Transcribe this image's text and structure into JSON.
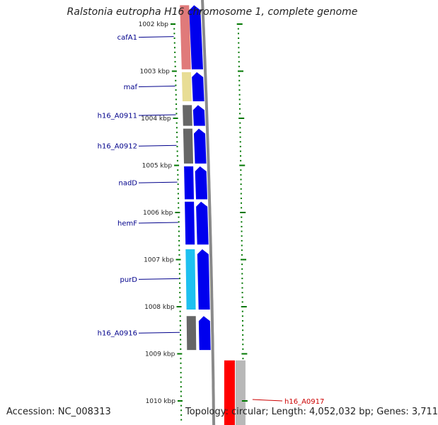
{
  "title": "Ralstonia eutropha H16 chromosome 1, complete genome",
  "accession": "Accession: NC_008313",
  "topology": "Topology: circular; Length: 4,052,032 bp; Genes: 3,711",
  "colors": {
    "label_blue": "#00008b",
    "label_red": "#cc0000",
    "tick_green": "#007700",
    "backbone": "#8a8a8a",
    "cds_blue": "#0000ee",
    "cafA1": "#e07a7a",
    "maf": "#e8dd95",
    "grey": "#666666",
    "purD": "#1ec0f0",
    "red": "#ff0000",
    "lightgrey": "#b8b8b8"
  },
  "axis": {
    "unit": "kbp",
    "ticks": [
      {
        "kbp": 1002,
        "label": "1002 kbp"
      },
      {
        "kbp": 1003,
        "label": "1003 kbp"
      },
      {
        "kbp": 1004,
        "label": "1004 kbp"
      },
      {
        "kbp": 1005,
        "label": "1005 kbp"
      },
      {
        "kbp": 1006,
        "label": "1006 kbp"
      },
      {
        "kbp": 1007,
        "label": "1007 kbp"
      },
      {
        "kbp": 1008,
        "label": "1008 kbp"
      },
      {
        "kbp": 1009,
        "label": "1009 kbp"
      },
      {
        "kbp": 1010,
        "label": "1010 kbp"
      }
    ]
  },
  "genes": [
    {
      "name": "cafA1",
      "start_kbp": 1001.6,
      "end_kbp": 1002.96,
      "strand": "+",
      "color": "cafA1",
      "label": "cafA1",
      "label_color": "label_blue"
    },
    {
      "name": "maf",
      "start_kbp": 1003.02,
      "end_kbp": 1003.64,
      "strand": "+",
      "color": "maf",
      "label": "maf",
      "label_color": "label_blue"
    },
    {
      "name": "h16_A0911",
      "start_kbp": 1003.72,
      "end_kbp": 1004.16,
      "strand": "+",
      "color": "grey",
      "label": "h16_A0911",
      "label_color": "label_blue"
    },
    {
      "name": "h16_A0912",
      "start_kbp": 1004.22,
      "end_kbp": 1004.96,
      "strand": "+",
      "color": "grey",
      "label": "h16_A0912",
      "label_color": "label_blue"
    },
    {
      "name": "nadD",
      "start_kbp": 1005.02,
      "end_kbp": 1005.72,
      "strand": "+",
      "color": "cds_blue",
      "label": "nadD",
      "label_color": "label_blue"
    },
    {
      "name": "hemF",
      "start_kbp": 1005.77,
      "end_kbp": 1006.68,
      "strand": "+",
      "color": "cds_blue",
      "label": "hemF",
      "label_color": "label_blue"
    },
    {
      "name": "purD",
      "start_kbp": 1006.78,
      "end_kbp": 1008.06,
      "strand": "+",
      "color": "purD",
      "label": "purD",
      "label_color": "label_blue"
    },
    {
      "name": "h16_A0916",
      "start_kbp": 1008.2,
      "end_kbp": 1008.92,
      "strand": "+",
      "color": "grey",
      "label": "h16_A0916",
      "label_color": "label_blue"
    },
    {
      "name": "h16_A0917",
      "start_kbp": 1009.14,
      "end_kbp": 1010.6,
      "strand": "-",
      "color": "red",
      "label": "h16_A0917",
      "label_color": "label_red"
    }
  ]
}
